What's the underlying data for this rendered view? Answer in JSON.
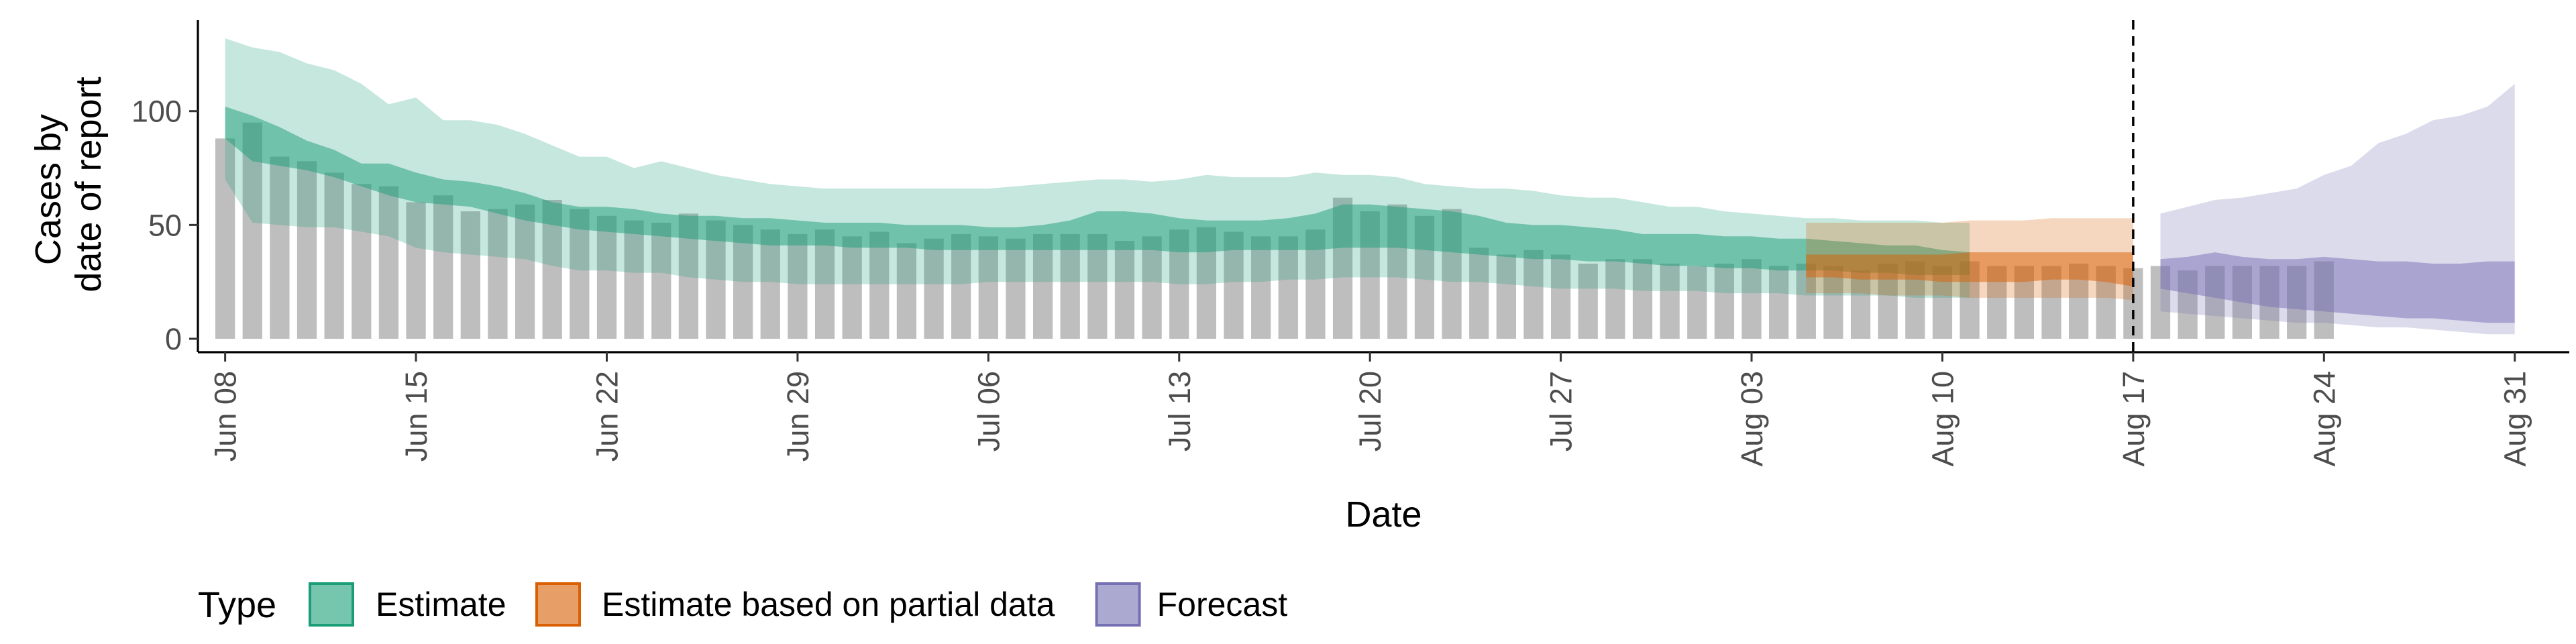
{
  "chart_data": {
    "type": "bar",
    "xlabel": "Date",
    "ylabel": "Cases by date of report",
    "ylabel_lines": [
      "Cases by",
      "date of report"
    ],
    "x_range": [
      "2020-06-07",
      "2020-09-02"
    ],
    "ylim": [
      0,
      140
    ],
    "y_ticks": [
      0,
      50,
      100
    ],
    "x_ticks": [
      {
        "date": "2020-06-08",
        "label": "Jun 08"
      },
      {
        "date": "2020-06-15",
        "label": "Jun 15"
      },
      {
        "date": "2020-06-22",
        "label": "Jun 22"
      },
      {
        "date": "2020-06-29",
        "label": "Jun 29"
      },
      {
        "date": "2020-07-06",
        "label": "Jul 06"
      },
      {
        "date": "2020-07-13",
        "label": "Jul 13"
      },
      {
        "date": "2020-07-20",
        "label": "Jul 20"
      },
      {
        "date": "2020-07-27",
        "label": "Jul 27"
      },
      {
        "date": "2020-08-03",
        "label": "Aug 03"
      },
      {
        "date": "2020-08-10",
        "label": "Aug 10"
      },
      {
        "date": "2020-08-17",
        "label": "Aug 17"
      },
      {
        "date": "2020-08-24",
        "label": "Aug 24"
      },
      {
        "date": "2020-08-31",
        "label": "Aug 31"
      }
    ],
    "grid": false,
    "vline_date": "2020-08-17",
    "bar_color": "#BEBEBE",
    "reported_cases": {
      "start_date": "2020-06-08",
      "values": [
        88,
        95,
        80,
        78,
        73,
        68,
        67,
        60,
        63,
        56,
        57,
        59,
        61,
        57,
        54,
        52,
        51,
        55,
        52,
        50,
        48,
        46,
        48,
        45,
        47,
        42,
        44,
        46,
        45,
        44,
        46,
        46,
        46,
        43,
        45,
        48,
        49,
        47,
        45,
        45,
        48,
        62,
        56,
        59,
        54,
        57,
        40,
        37,
        39,
        37,
        33,
        35,
        35,
        33,
        32,
        33,
        35,
        32,
        33,
        32,
        30,
        33,
        34,
        32,
        34,
        32,
        32,
        32,
        33,
        32,
        31,
        32,
        30,
        32,
        32,
        32,
        32,
        34
      ]
    },
    "series": [
      {
        "name": "Estimate",
        "color": "#1B9E77",
        "start_date": "2020-06-08",
        "lower90": [
          70,
          51,
          50,
          49,
          49,
          47,
          45,
          40,
          38,
          37,
          36,
          35,
          32,
          30,
          30,
          29,
          29,
          27,
          26,
          25,
          25,
          24,
          24,
          24,
          24,
          24,
          24,
          24,
          25,
          25,
          25,
          25,
          25,
          25,
          25,
          24,
          24,
          25,
          25,
          26,
          26,
          27,
          27,
          27,
          26,
          25,
          25,
          24,
          23,
          22,
          22,
          22,
          21,
          21,
          21,
          20,
          20,
          20,
          19,
          19,
          19,
          19,
          18,
          18,
          18
        ],
        "lower50": [
          88,
          78,
          76,
          74,
          71,
          67,
          63,
          60,
          59,
          58,
          55,
          52,
          50,
          48,
          47,
          46,
          45,
          44,
          43,
          42,
          41,
          41,
          41,
          40,
          40,
          40,
          39,
          39,
          39,
          39,
          39,
          39,
          39,
          39,
          39,
          38,
          38,
          39,
          39,
          39,
          39,
          40,
          40,
          40,
          39,
          38,
          37,
          36,
          35,
          35,
          34,
          34,
          33,
          32,
          32,
          31,
          31,
          30,
          30,
          30,
          29,
          29,
          28,
          28,
          28
        ],
        "upper50": [
          102,
          98,
          93,
          87,
          83,
          77,
          77,
          73,
          70,
          69,
          67,
          64,
          60,
          58,
          58,
          57,
          55,
          54,
          54,
          53,
          53,
          52,
          51,
          51,
          51,
          50,
          50,
          50,
          49,
          49,
          50,
          52,
          56,
          56,
          55,
          53,
          52,
          52,
          52,
          53,
          55,
          59,
          59,
          58,
          57,
          56,
          54,
          51,
          50,
          50,
          49,
          48,
          46,
          46,
          46,
          45,
          45,
          44,
          44,
          43,
          42,
          41,
          41,
          39,
          38
        ],
        "upper90": [
          132,
          128,
          126,
          121,
          118,
          112,
          103,
          106,
          96,
          96,
          94,
          90,
          85,
          80,
          80,
          75,
          78,
          75,
          72,
          70,
          68,
          67,
          66,
          66,
          66,
          66,
          66,
          66,
          66,
          67,
          68,
          69,
          70,
          70,
          69,
          70,
          72,
          71,
          71,
          71,
          73,
          72,
          72,
          71,
          68,
          67,
          66,
          66,
          65,
          63,
          62,
          62,
          60,
          58,
          58,
          56,
          55,
          54,
          53,
          53,
          52,
          52,
          52,
          51,
          51
        ]
      },
      {
        "name": "Estimate based on partial data",
        "color": "#D95F02",
        "start_date": "2020-08-05",
        "lower90": [
          20,
          20,
          20,
          19,
          19,
          19,
          18,
          18,
          18,
          18,
          18,
          18,
          17
        ],
        "lower50": [
          27,
          27,
          26,
          26,
          26,
          25,
          25,
          25,
          25,
          26,
          26,
          25,
          23
        ],
        "upper50": [
          37,
          37,
          37,
          37,
          37,
          37,
          38,
          38,
          38,
          38,
          38,
          38,
          38
        ],
        "upper90": [
          51,
          51,
          51,
          51,
          51,
          51,
          52,
          52,
          52,
          53,
          53,
          53,
          53
        ]
      },
      {
        "name": "Forecast",
        "color": "#7570B3",
        "start_date": "2020-08-18",
        "lower90": [
          12,
          11,
          10,
          9,
          8,
          7,
          7,
          6,
          5,
          5,
          4,
          3,
          2,
          2
        ],
        "lower50": [
          22,
          20,
          18,
          16,
          14,
          13,
          12,
          11,
          10,
          9,
          9,
          8,
          7,
          7
        ],
        "upper50": [
          35,
          36,
          38,
          36,
          35,
          35,
          36,
          35,
          34,
          34,
          33,
          33,
          34,
          34
        ],
        "upper90": [
          55,
          58,
          61,
          62,
          64,
          66,
          72,
          76,
          86,
          90,
          96,
          98,
          102,
          112
        ]
      }
    ],
    "legend": {
      "title": "Type",
      "position": "bottom-left",
      "items": [
        {
          "label": "Estimate",
          "color": "#1B9E77"
        },
        {
          "label": "Estimate based on partial data",
          "color": "#D95F02"
        },
        {
          "label": "Forecast",
          "color": "#7570B3"
        }
      ]
    }
  }
}
